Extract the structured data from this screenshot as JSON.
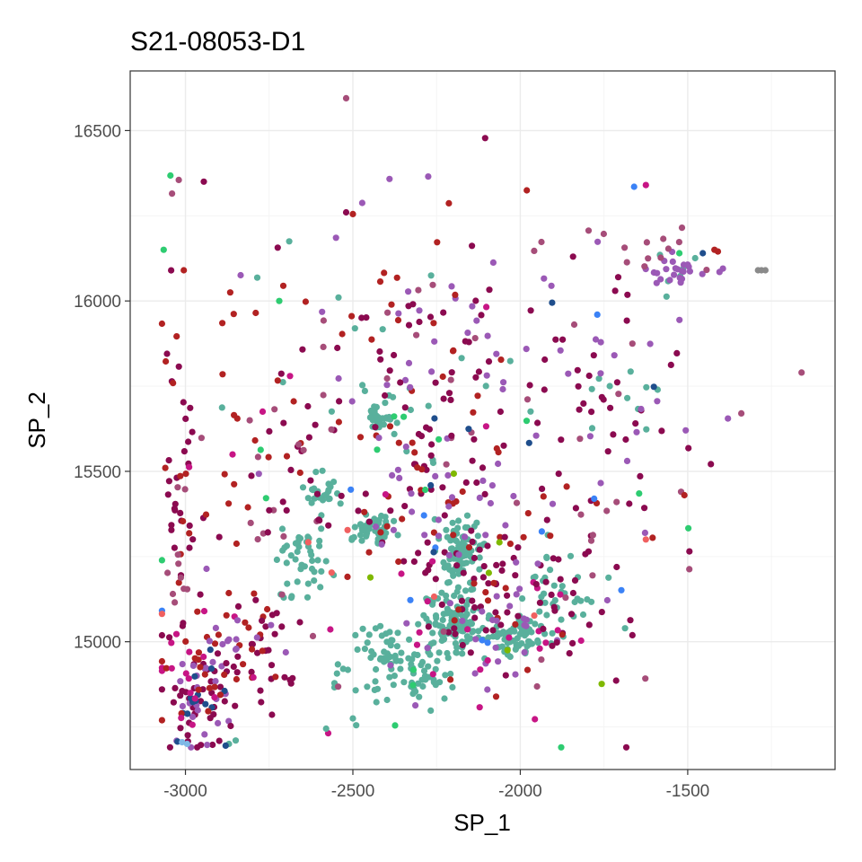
{
  "chart_data": {
    "type": "scatter",
    "title": "S21-08053-D1",
    "xlabel": "SP_1",
    "ylabel": "SP_2",
    "xlim": [
      -3165,
      -1060
    ],
    "ylim": [
      14625,
      16675
    ],
    "x_ticks": [
      -3000,
      -2500,
      -2000,
      -1500
    ],
    "x_tick_labels": [
      "-3000",
      "-2500",
      "-2000",
      "-1500"
    ],
    "y_ticks": [
      15000,
      15500,
      16000,
      16500
    ],
    "y_tick_labels": [
      "15000",
      "15500",
      "16000",
      "16500"
    ],
    "grid": true,
    "legend": "none",
    "theme": "bw",
    "palette": {
      "teal": "#59b09c",
      "plum": "#8b0a50",
      "violet": "#9b59b6",
      "mauve": "#a64d79",
      "brick": "#b22222",
      "crimson": "#c71585",
      "navy": "#1f4e8c",
      "blue": "#3b82f6",
      "green": "#2ecc71",
      "olive": "#7fb800",
      "salmon": "#f06060",
      "sky": "#7fb8e6",
      "grey": "#8a8a8a"
    },
    "clusters": [
      {
        "color": "teal",
        "cx": -2180,
        "cy": 15260,
        "sx": 28,
        "sy": 40,
        "n": 90
      },
      {
        "color": "teal",
        "cx": -2195,
        "cy": 15060,
        "sx": 42,
        "sy": 45,
        "n": 110
      },
      {
        "color": "teal",
        "cx": -2440,
        "cy": 15330,
        "sx": 28,
        "sy": 22,
        "n": 55
      },
      {
        "color": "teal",
        "cx": -2420,
        "cy": 15660,
        "sx": 18,
        "sy": 22,
        "n": 28
      },
      {
        "color": "teal",
        "cx": -2020,
        "cy": 15010,
        "sx": 35,
        "sy": 25,
        "n": 60
      },
      {
        "color": "teal",
        "cx": -2600,
        "cy": 15450,
        "sx": 30,
        "sy": 30,
        "n": 24
      },
      {
        "color": "teal",
        "cx": -2650,
        "cy": 15250,
        "sx": 45,
        "sy": 60,
        "n": 45
      },
      {
        "color": "teal",
        "cx": -2380,
        "cy": 14960,
        "sx": 80,
        "sy": 55,
        "n": 70
      },
      {
        "color": "teal",
        "cx": -1880,
        "cy": 15130,
        "sx": 60,
        "sy": 60,
        "n": 40
      },
      {
        "color": "teal",
        "cx": -2300,
        "cy": 14880,
        "sx": 60,
        "sy": 40,
        "n": 30
      },
      {
        "color": "teal",
        "cx": -1550,
        "cy": 16080,
        "sx": 50,
        "sy": 25,
        "n": 6
      },
      {
        "color": "violet",
        "cx": -1540,
        "cy": 16080,
        "sx": 40,
        "sy": 22,
        "n": 22
      },
      {
        "color": "mauve",
        "cx": -1620,
        "cy": 16150,
        "sx": 70,
        "sy": 40,
        "n": 10
      },
      {
        "color": "plum",
        "cx": -2960,
        "cy": 14850,
        "sx": 60,
        "sy": 80,
        "n": 40
      },
      {
        "color": "violet",
        "cx": -2960,
        "cy": 14870,
        "sx": 60,
        "sy": 90,
        "n": 25
      },
      {
        "color": "navy",
        "cx": -2960,
        "cy": 14850,
        "sx": 55,
        "sy": 70,
        "n": 14
      },
      {
        "color": "brick",
        "cx": -2920,
        "cy": 14900,
        "sx": 80,
        "sy": 110,
        "n": 18
      },
      {
        "color": "crimson",
        "cx": -2960,
        "cy": 14950,
        "sx": 60,
        "sy": 120,
        "n": 14
      },
      {
        "color": "plum",
        "cx": -3020,
        "cy": 15350,
        "sx": 25,
        "sy": 230,
        "n": 30
      },
      {
        "color": "brick",
        "cx": -3020,
        "cy": 15400,
        "sx": 25,
        "sy": 250,
        "n": 12
      },
      {
        "color": "mauve",
        "cx": -3020,
        "cy": 15200,
        "sx": 25,
        "sy": 150,
        "n": 10
      },
      {
        "color": "plum",
        "cx": -2120,
        "cy": 15150,
        "sx": 120,
        "sy": 110,
        "n": 60
      },
      {
        "color": "brick",
        "cx": -2100,
        "cy": 15230,
        "sx": 160,
        "sy": 160,
        "n": 30
      },
      {
        "color": "violet",
        "cx": -2100,
        "cy": 15100,
        "sx": 170,
        "sy": 140,
        "n": 35
      },
      {
        "color": "crimson",
        "cx": -2050,
        "cy": 15000,
        "sx": 160,
        "sy": 100,
        "n": 18
      },
      {
        "color": "plum",
        "cx": -1800,
        "cy": 15250,
        "sx": 120,
        "sy": 200,
        "n": 30
      },
      {
        "color": "mauve",
        "cx": -1850,
        "cy": 15350,
        "sx": 140,
        "sy": 250,
        "n": 16
      },
      {
        "color": "plum",
        "cx": -2350,
        "cy": 15550,
        "sx": 180,
        "sy": 150,
        "n": 45
      },
      {
        "color": "brick",
        "cx": -2400,
        "cy": 15600,
        "sx": 200,
        "sy": 200,
        "n": 30
      },
      {
        "color": "violet",
        "cx": -2300,
        "cy": 15500,
        "sx": 220,
        "sy": 200,
        "n": 30
      },
      {
        "color": "plum",
        "cx": -2780,
        "cy": 14950,
        "sx": 60,
        "sy": 90,
        "n": 28
      },
      {
        "color": "brick",
        "cx": -2780,
        "cy": 15000,
        "sx": 70,
        "sy": 100,
        "n": 14
      },
      {
        "color": "violet",
        "cx": -2800,
        "cy": 15000,
        "sx": 80,
        "sy": 120,
        "n": 12
      },
      {
        "color": "plum",
        "cx": -2150,
        "cy": 15880,
        "sx": 250,
        "sy": 200,
        "n": 35
      },
      {
        "color": "violet",
        "cx": -2150,
        "cy": 15950,
        "sx": 300,
        "sy": 220,
        "n": 30
      },
      {
        "color": "mauve",
        "cx": -2200,
        "cy": 15900,
        "sx": 300,
        "sy": 220,
        "n": 20
      },
      {
        "color": "brick",
        "cx": -2300,
        "cy": 15950,
        "sx": 300,
        "sy": 200,
        "n": 18
      },
      {
        "color": "teal",
        "cx": -2300,
        "cy": 15750,
        "sx": 200,
        "sy": 150,
        "n": 25
      },
      {
        "color": "plum",
        "cx": -1700,
        "cy": 15700,
        "sx": 120,
        "sy": 180,
        "n": 22
      },
      {
        "color": "violet",
        "cx": -1650,
        "cy": 15750,
        "sx": 130,
        "sy": 170,
        "n": 14
      },
      {
        "color": "teal",
        "cx": -1700,
        "cy": 15750,
        "sx": 130,
        "sy": 120,
        "n": 10
      },
      {
        "color": "mauve",
        "cx": -2700,
        "cy": 15400,
        "sx": 80,
        "sy": 200,
        "n": 16
      },
      {
        "color": "plum",
        "cx": -2700,
        "cy": 15450,
        "sx": 80,
        "sy": 200,
        "n": 16
      },
      {
        "color": "brick",
        "cx": -2820,
        "cy": 15500,
        "sx": 60,
        "sy": 150,
        "n": 10
      },
      {
        "color": "green",
        "cx": -2350,
        "cy": 15300,
        "sx": 350,
        "sy": 300,
        "n": 14
      },
      {
        "color": "blue",
        "cx": -2300,
        "cy": 15200,
        "sx": 450,
        "sy": 350,
        "n": 10
      },
      {
        "color": "navy",
        "cx": -2300,
        "cy": 15400,
        "sx": 500,
        "sy": 450,
        "n": 6
      },
      {
        "color": "olive",
        "cx": -2200,
        "cy": 15150,
        "sx": 300,
        "sy": 200,
        "n": 6
      },
      {
        "color": "salmon",
        "cx": -2500,
        "cy": 15100,
        "sx": 450,
        "sy": 250,
        "n": 6
      },
      {
        "color": "crimson",
        "cx": -2500,
        "cy": 15350,
        "sx": 400,
        "sy": 350,
        "n": 14
      }
    ],
    "points": [
      {
        "x": -2520,
        "y": 16595,
        "color": "mauve"
      },
      {
        "x": -2105,
        "y": 16478,
        "color": "plum"
      },
      {
        "x": -3045,
        "y": 16368,
        "color": "green"
      },
      {
        "x": -2945,
        "y": 16350,
        "color": "plum"
      },
      {
        "x": -3040,
        "y": 16315,
        "color": "mauve"
      },
      {
        "x": -3020,
        "y": 16355,
        "color": "mauve"
      },
      {
        "x": -3065,
        "y": 16150,
        "color": "green"
      },
      {
        "x": -3005,
        "y": 16090,
        "color": "brick"
      },
      {
        "x": -2275,
        "y": 16365,
        "color": "violet"
      },
      {
        "x": -1660,
        "y": 16335,
        "color": "blue"
      },
      {
        "x": -1625,
        "y": 16340,
        "color": "crimson"
      },
      {
        "x": -1280,
        "y": 16090,
        "color": "grey"
      },
      {
        "x": -1268,
        "y": 16090,
        "color": "grey"
      },
      {
        "x": -1290,
        "y": 16090,
        "color": "grey"
      },
      {
        "x": -1160,
        "y": 15790,
        "color": "mauve"
      },
      {
        "x": -1420,
        "y": 16150,
        "color": "brick"
      },
      {
        "x": -1410,
        "y": 16145,
        "color": "brick"
      },
      {
        "x": -1455,
        "y": 16140,
        "color": "navy"
      },
      {
        "x": -1525,
        "y": 16140,
        "color": "green"
      },
      {
        "x": -1395,
        "y": 16095,
        "color": "violet"
      },
      {
        "x": -1405,
        "y": 16085,
        "color": "violet"
      },
      {
        "x": -1340,
        "y": 15670,
        "color": "mauve"
      },
      {
        "x": -1380,
        "y": 15655,
        "color": "violet"
      },
      {
        "x": -1495,
        "y": 15265,
        "color": "plum"
      },
      {
        "x": -1520,
        "y": 15440,
        "color": "mauve"
      },
      {
        "x": -1510,
        "y": 15430,
        "color": "brick"
      },
      {
        "x": -1645,
        "y": 15435,
        "color": "green"
      },
      {
        "x": -1605,
        "y": 15305,
        "color": "brick"
      },
      {
        "x": -1625,
        "y": 15300,
        "color": "salmon"
      },
      {
        "x": -1770,
        "y": 15960,
        "color": "blue"
      },
      {
        "x": -1905,
        "y": 15995,
        "color": "navy"
      },
      {
        "x": -3055,
        "y": 15845,
        "color": "plum"
      },
      {
        "x": -2855,
        "y": 15665,
        "color": "brick"
      },
      {
        "x": -2845,
        "y": 15655,
        "color": "brick"
      },
      {
        "x": -2890,
        "y": 15935,
        "color": "brick"
      },
      {
        "x": -2790,
        "y": 15965,
        "color": "brick"
      },
      {
        "x": -2690,
        "y": 16175,
        "color": "teal"
      },
      {
        "x": -2720,
        "y": 16000,
        "color": "green"
      },
      {
        "x": -2870,
        "y": 14700,
        "color": "teal"
      },
      {
        "x": -2850,
        "y": 14710,
        "color": "teal"
      },
      {
        "x": -2880,
        "y": 14695,
        "color": "navy"
      },
      {
        "x": -3010,
        "y": 14705,
        "color": "sky"
      },
      {
        "x": -2995,
        "y": 14700,
        "color": "sky"
      },
      {
        "x": -2580,
        "y": 14745,
        "color": "teal"
      },
      {
        "x": -2490,
        "y": 14755,
        "color": "teal"
      },
      {
        "x": -2500,
        "y": 14775,
        "color": "teal"
      },
      {
        "x": -2520,
        "y": 16260,
        "color": "plum"
      },
      {
        "x": -2500,
        "y": 16255,
        "color": "brick"
      }
    ]
  }
}
